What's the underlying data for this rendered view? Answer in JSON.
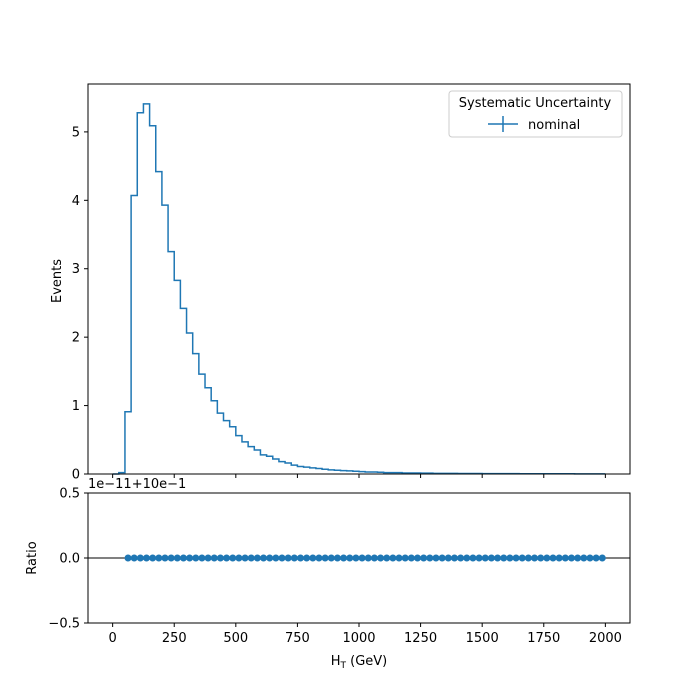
{
  "chart_data": [
    {
      "type": "histogram-step",
      "ylabel": "Events",
      "ylim": [
        0,
        5.7
      ],
      "xlim": [
        -100,
        2100
      ],
      "yticks": [
        0,
        1,
        2,
        3,
        4,
        5
      ],
      "ytick_labels": [
        "0",
        "1",
        "2",
        "3",
        "4",
        "5"
      ],
      "bin_edges": [
        0,
        25,
        50,
        75,
        100,
        125,
        150,
        175,
        200,
        225,
        250,
        275,
        300,
        325,
        350,
        375,
        400,
        425,
        450,
        475,
        500,
        525,
        550,
        575,
        600,
        625,
        650,
        675,
        700,
        725,
        750,
        775,
        800,
        825,
        850,
        875,
        900,
        925,
        950,
        975,
        1000,
        1025,
        1050,
        1075,
        1100,
        1125,
        1150,
        1175,
        1200,
        1225,
        1250,
        1275,
        1300,
        1325,
        1350,
        1375,
        1400,
        1425,
        1450,
        1475,
        1500,
        1525,
        1550,
        1575,
        1600,
        1625,
        1650,
        1675,
        1700,
        1725,
        1750,
        1775,
        1800,
        1825,
        1850,
        1875,
        1900,
        1925,
        1950,
        1975,
        2000
      ],
      "values": [
        0.0,
        0.02,
        0.91,
        4.07,
        5.28,
        5.41,
        5.09,
        4.42,
        3.93,
        3.25,
        2.83,
        2.42,
        2.06,
        1.76,
        1.46,
        1.26,
        1.07,
        0.89,
        0.78,
        0.69,
        0.56,
        0.47,
        0.4,
        0.35,
        0.28,
        0.26,
        0.22,
        0.18,
        0.16,
        0.13,
        0.11,
        0.1,
        0.09,
        0.08,
        0.07,
        0.06,
        0.055,
        0.05,
        0.045,
        0.04,
        0.035,
        0.03,
        0.03,
        0.025,
        0.02,
        0.02,
        0.02,
        0.015,
        0.015,
        0.015,
        0.012,
        0.012,
        0.01,
        0.01,
        0.01,
        0.01,
        0.008,
        0.008,
        0.008,
        0.007,
        0.006,
        0.006,
        0.006,
        0.005,
        0.005,
        0.005,
        0.004,
        0.004,
        0.004,
        0.004,
        0.003,
        0.003,
        0.003,
        0.003,
        0.003,
        0.002,
        0.002,
        0.002,
        0.002,
        0.002
      ],
      "series": [
        {
          "name": "nominal",
          "color": "#1f77b4"
        }
      ],
      "legend": {
        "title": "Systematic Uncertainty",
        "placement": "top-right"
      },
      "grid": false
    },
    {
      "type": "scatter",
      "xlabel_main": "H",
      "xlabel_sub": "T",
      "xlabel_unit": " (GeV)",
      "ylabel": "Ratio",
      "ylim": [
        -0.5,
        0.5
      ],
      "xlim": [
        -100,
        2100
      ],
      "offset_text": "1e−11+10e−1",
      "yticks": [
        -0.5,
        0.0,
        0.5
      ],
      "ytick_labels": [
        "−0.5",
        "0.0",
        "0.5"
      ],
      "xticks": [
        0,
        250,
        500,
        750,
        1000,
        1250,
        1500,
        1750,
        2000
      ],
      "xtick_labels": [
        "0",
        "250",
        "500",
        "750",
        "1000",
        "1250",
        "1500",
        "1750",
        "2000"
      ],
      "reference_line_y": 0.0,
      "x": [
        62.5,
        87.5,
        112.5,
        137.5,
        162.5,
        187.5,
        212.5,
        237.5,
        262.5,
        287.5,
        312.5,
        337.5,
        362.5,
        387.5,
        412.5,
        437.5,
        462.5,
        487.5,
        512.5,
        537.5,
        562.5,
        587.5,
        612.5,
        637.5,
        662.5,
        687.5,
        712.5,
        737.5,
        762.5,
        787.5,
        812.5,
        837.5,
        862.5,
        887.5,
        912.5,
        937.5,
        962.5,
        987.5,
        1012.5,
        1037.5,
        1062.5,
        1087.5,
        1112.5,
        1137.5,
        1162.5,
        1187.5,
        1212.5,
        1237.5,
        1262.5,
        1287.5,
        1312.5,
        1337.5,
        1362.5,
        1387.5,
        1412.5,
        1437.5,
        1462.5,
        1487.5,
        1512.5,
        1537.5,
        1562.5,
        1587.5,
        1612.5,
        1637.5,
        1662.5,
        1687.5,
        1712.5,
        1737.5,
        1762.5,
        1787.5,
        1812.5,
        1837.5,
        1862.5,
        1887.5,
        1912.5,
        1937.5,
        1962.5,
        1987.5
      ],
      "y_value": 0.0,
      "color": "#1f77b4"
    }
  ]
}
